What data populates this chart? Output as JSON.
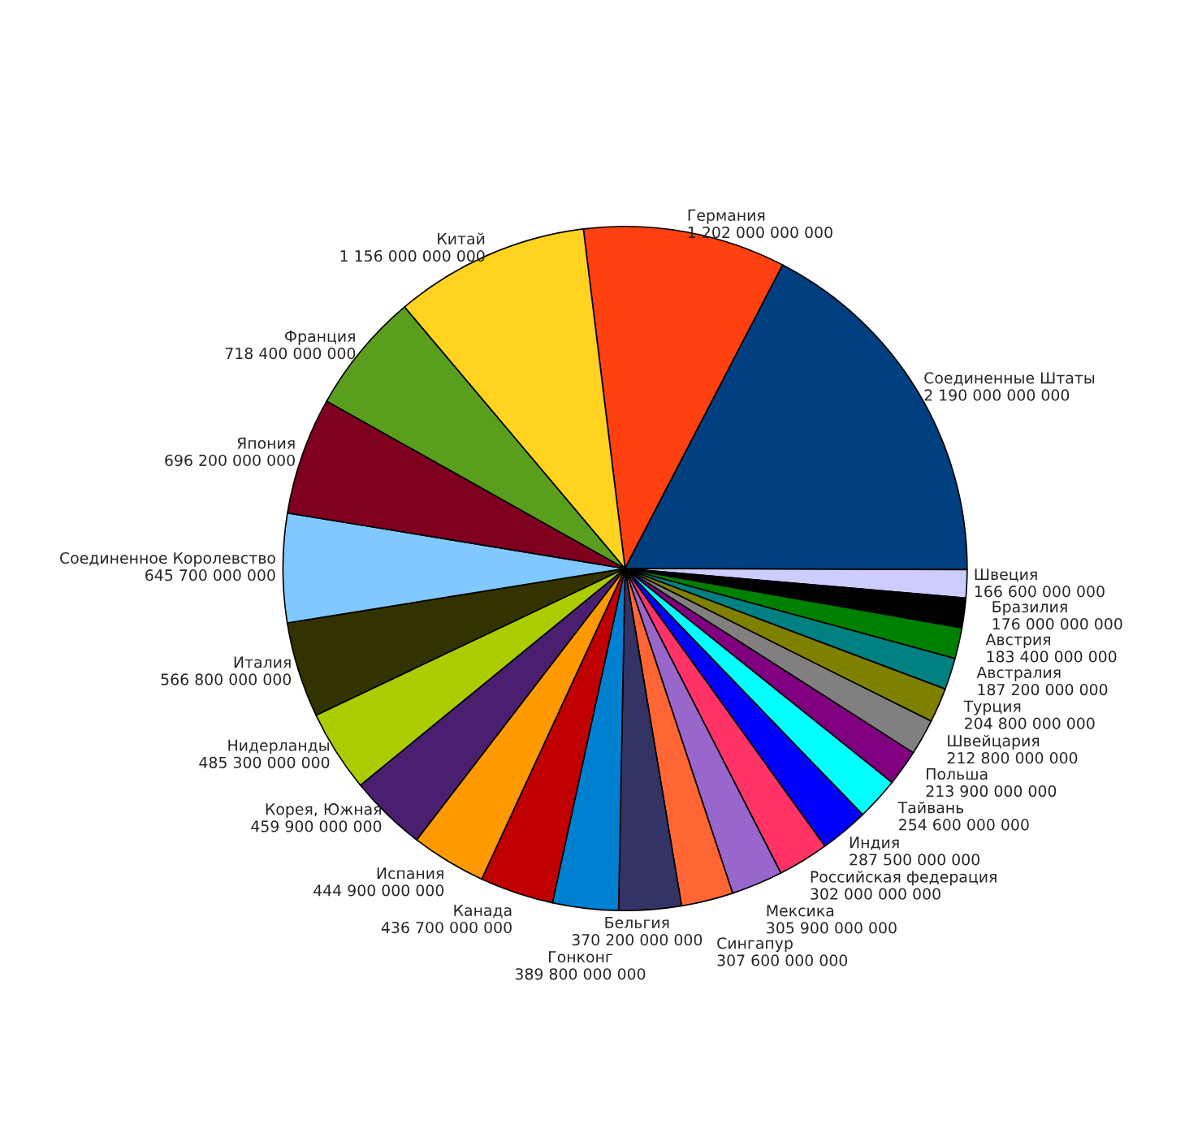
{
  "chart_data": {
    "type": "pie",
    "categories": [
      "Германия",
      "Соединенные Штаты",
      "Швеция",
      "Бразилия",
      "Австрия",
      "Австралия",
      "Турция",
      "Швейцария",
      "Польша",
      "Тайвань",
      "Индия",
      "Российская федерация",
      "Мексика",
      "Сингапур",
      "Бельгия",
      "Гонконг",
      "Канада",
      "Испания",
      "Корея, Южная",
      "Нидерланды",
      "Италия",
      "Соединенное Королевство",
      "Япония",
      "Франция",
      "Китай"
    ],
    "values": [
      1202000000000,
      2190000000000,
      166600000000,
      176000000000,
      183400000000,
      187200000000,
      204800000000,
      212800000000,
      213900000000,
      254600000000,
      287500000000,
      302000000000,
      305900000000,
      307600000000,
      370200000000,
      389800000000,
      436700000000,
      444900000000,
      459900000000,
      485300000000,
      566800000000,
      645700000000,
      696200000000,
      718400000000,
      1156000000000
    ],
    "colors": [
      "#ff4010",
      "#004080",
      "#ccccff",
      "#000000",
      "#008000",
      "#008080",
      "#808000",
      "#808080",
      "#800080",
      "#00ffff",
      "#0000ff",
      "#ff3366",
      "#9966cc",
      "#ff6633",
      "#333366",
      "#0080d0",
      "#c00000",
      "#ff9900",
      "#4b1f6f",
      "#aacc00",
      "#333300",
      "#80c8ff",
      "#800020",
      "#5a9e1e",
      "#ffd320"
    ],
    "value_labels": [
      "1 202 000 000 000",
      "2 190 000 000 000",
      "166 600 000 000",
      "176 000 000 000",
      "183 400 000 000",
      "187 200 000 000",
      "204 800 000 000",
      "212 800 000 000",
      "213 900 000 000",
      "254 600 000 000",
      "287 500 000 000",
      "302 000 000 000",
      "305 900 000 000",
      "307 600 000 000",
      "370 200 000 000",
      "389 800 000 000",
      "436 700 000 000",
      "444 900 000 000",
      "459 900 000 000",
      "485 300 000 000",
      "566 800 000 000",
      "645 700 000 000",
      "696 200 000 000",
      "718 400 000 000",
      "1 156 000 000 000"
    ]
  }
}
